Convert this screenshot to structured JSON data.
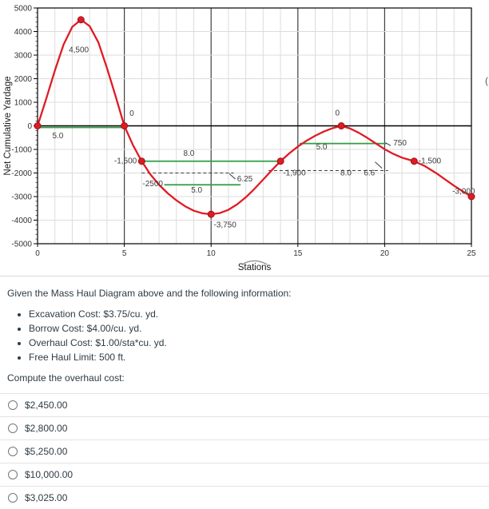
{
  "chart_data": {
    "type": "line",
    "title": "",
    "xlabel": "Stations",
    "ylabel": "Net Cumulative Yardage",
    "xlim": [
      0,
      25
    ],
    "ylim": [
      -5000,
      5000
    ],
    "x_ticks": [
      0,
      5,
      10,
      15,
      20,
      25
    ],
    "y_tick_step": 1000,
    "grid": true,
    "curve_color": "#e01b24",
    "marker_stroke_color": "#9c1016",
    "balance_line_color": "#2f9e44",
    "series": [
      {
        "name": "Mass haul curve (Net Cumulative Yardage)",
        "points": [
          [
            0,
            0
          ],
          [
            0.5,
            1150
          ],
          [
            1,
            2350
          ],
          [
            1.5,
            3450
          ],
          [
            2,
            4200
          ],
          [
            2.5,
            4500
          ],
          [
            3,
            4230
          ],
          [
            3.5,
            3550
          ],
          [
            4,
            2450
          ],
          [
            4.5,
            1250
          ],
          [
            5,
            0
          ],
          [
            5.5,
            -820
          ],
          [
            6,
            -1500
          ],
          [
            6.5,
            -2060
          ],
          [
            7,
            -2500
          ],
          [
            7.5,
            -2860
          ],
          [
            8,
            -3160
          ],
          [
            8.5,
            -3410
          ],
          [
            9,
            -3600
          ],
          [
            9.5,
            -3710
          ],
          [
            10,
            -3750
          ],
          [
            10.5,
            -3700
          ],
          [
            11,
            -3560
          ],
          [
            11.5,
            -3330
          ],
          [
            12,
            -3030
          ],
          [
            12.5,
            -2670
          ],
          [
            13,
            -2280
          ],
          [
            13.5,
            -1880
          ],
          [
            14,
            -1500
          ],
          [
            14.5,
            -1170
          ],
          [
            15,
            -880
          ],
          [
            15.5,
            -630
          ],
          [
            16,
            -420
          ],
          [
            16.5,
            -240
          ],
          [
            17,
            -100
          ],
          [
            17.5,
            0
          ],
          [
            18,
            -110
          ],
          [
            18.5,
            -290
          ],
          [
            19,
            -510
          ],
          [
            19.5,
            -750
          ],
          [
            20,
            -990
          ],
          [
            20.5,
            -1190
          ],
          [
            21,
            -1350
          ],
          [
            21.7,
            -1500
          ],
          [
            22.3,
            -1700
          ],
          [
            23,
            -2020
          ],
          [
            23.5,
            -2280
          ],
          [
            24,
            -2540
          ],
          [
            24.5,
            -2780
          ],
          [
            25,
            -3000
          ]
        ]
      }
    ],
    "markers": [
      [
        0,
        0
      ],
      [
        2.5,
        4500
      ],
      [
        5,
        0
      ],
      [
        6,
        -1500
      ],
      [
        10,
        -3750
      ],
      [
        14,
        -1500
      ],
      [
        17.5,
        0
      ],
      [
        21.7,
        -1500
      ],
      [
        25,
        -3000
      ]
    ],
    "balance_lines": [
      {
        "x1": 0,
        "x2": 5,
        "y": -70
      },
      {
        "x1": 6,
        "x2": 14,
        "y": -1500
      },
      {
        "x1": 7.3,
        "x2": 11.7,
        "y": -2500
      },
      {
        "x1": 15.1,
        "x2": 20.1,
        "y": -750
      }
    ],
    "dashed_lines": [
      {
        "x1": 6.0,
        "x2": 11.3,
        "y": -2000
      },
      {
        "x1": 13.3,
        "x2": 20.2,
        "y": -1900
      }
    ],
    "callouts": [
      {
        "x1": 11.05,
        "x2": 11.4,
        "y1": -2030,
        "y2": -2260
      },
      {
        "x1": 19.45,
        "x2": 19.85,
        "y1": -1530,
        "y2": -1800
      },
      {
        "x1": 20.05,
        "x2": 20.35,
        "y1": -720,
        "y2": -840
      }
    ],
    "annotations": [
      {
        "text": "4,500",
        "x": 1.8,
        "y": 3120,
        "anchor": "start"
      },
      {
        "text": "0",
        "x": 5.3,
        "y": 430,
        "anchor": "start"
      },
      {
        "text": "5.0",
        "x": 0.85,
        "y": -530,
        "anchor": "start"
      },
      {
        "text": "-1,500",
        "x": 5.72,
        "y": -1600,
        "anchor": "end"
      },
      {
        "text": "8.0",
        "x": 8.4,
        "y": -1270,
        "anchor": "start"
      },
      {
        "text": "-2500",
        "x": 6.05,
        "y": -2560,
        "anchor": "start"
      },
      {
        "text": "5.0",
        "x": 8.85,
        "y": -2830,
        "anchor": "start"
      },
      {
        "text": "6.25",
        "x": 11.5,
        "y": -2360,
        "anchor": "start"
      },
      {
        "text": "-3,750",
        "x": 10.15,
        "y": -4300,
        "anchor": "start"
      },
      {
        "text": "-1,900",
        "x": 14.15,
        "y": -2110,
        "anchor": "start"
      },
      {
        "text": "0",
        "x": 17.15,
        "y": 440,
        "anchor": "start"
      },
      {
        "text": "5.0",
        "x": 16.05,
        "y": -1000,
        "anchor": "start"
      },
      {
        "text": "750",
        "x": 20.5,
        "y": -830,
        "anchor": "start"
      },
      {
        "text": "8.0",
        "x": 17.45,
        "y": -2110,
        "anchor": "start"
      },
      {
        "text": "6.6",
        "x": 18.8,
        "y": -2110,
        "anchor": "start"
      },
      {
        "text": "-1,500",
        "x": 21.95,
        "y": -1590,
        "anchor": "start"
      },
      {
        "text": "-3,000",
        "x": 23.9,
        "y": -2880,
        "anchor": "start"
      }
    ]
  },
  "question": {
    "intro": "Given the Mass Haul Diagram above and the following information:",
    "bullets": [
      "Excavation Cost: $3.75/cu. yd.",
      "Borrow Cost: $4.00/cu. yd.",
      "Overhaul Cost: $1.00/sta*cu. yd.",
      "Free Haul Limit: 500 ft."
    ],
    "prompt": "Compute the overhaul cost:"
  },
  "options": [
    {
      "label": "$2,450.00",
      "selected": false
    },
    {
      "label": "$2,800.00",
      "selected": false
    },
    {
      "label": "$5,250.00",
      "selected": false
    },
    {
      "label": "$10,000.00",
      "selected": false
    },
    {
      "label": "$3,025.00",
      "selected": false
    }
  ],
  "edge_text": "("
}
